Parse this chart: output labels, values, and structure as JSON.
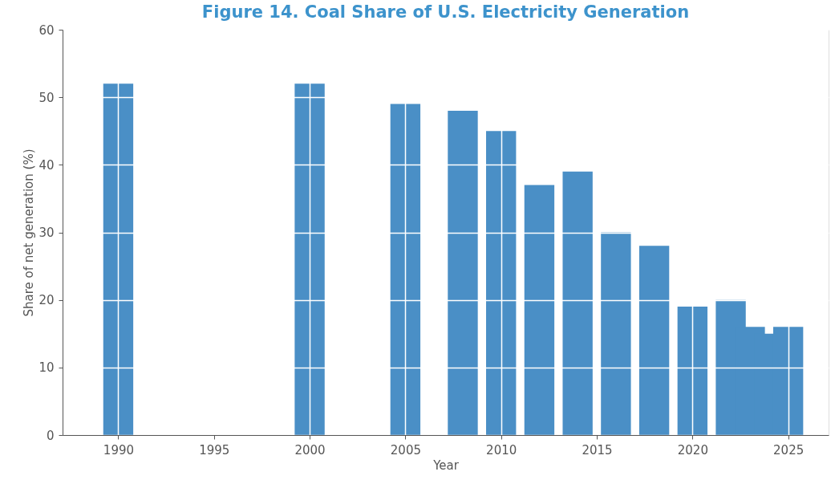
{
  "chart_data": {
    "type": "bar",
    "title": "Figure 14. Coal Share of U.S. Electricity Generation",
    "xlabel": "Year",
    "ylabel": "Share of net generation (%)",
    "x": [
      1990,
      2000,
      2005,
      2008,
      2010,
      2012,
      2014,
      2016,
      2018,
      2020,
      2022,
      2023,
      2024,
      2025
    ],
    "values": [
      52,
      52,
      49,
      48,
      45,
      37,
      39,
      30,
      28,
      19,
      20,
      16,
      15,
      16
    ],
    "color": "#4a8fc6",
    "xlim": [
      1987.3,
      2026.9
    ],
    "xticks": [
      1990,
      1995,
      2000,
      2005,
      2010,
      2015,
      2020,
      2025
    ],
    "ylim": [
      0,
      60
    ],
    "yticks": [
      0,
      10,
      20,
      30,
      40,
      50,
      60
    ],
    "grid": true
  }
}
